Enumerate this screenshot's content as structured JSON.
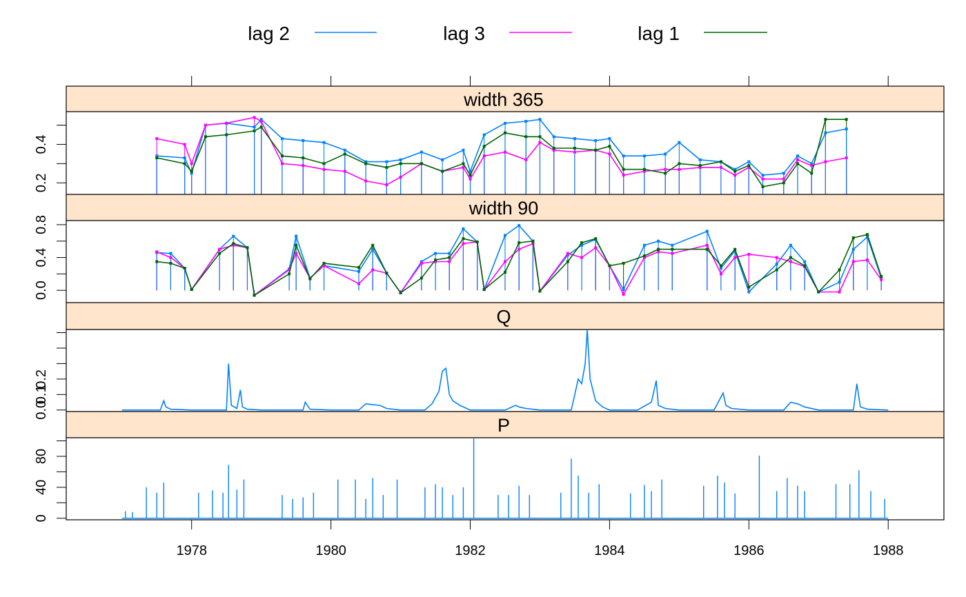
{
  "chart_data": {
    "type": "line",
    "layout": "stacked-panels",
    "legend": {
      "position": "top",
      "items": [
        {
          "label": "lag 2",
          "color": "#0080ff"
        },
        {
          "label": "lag 3",
          "color": "#ff00ff"
        },
        {
          "label": "lag 1",
          "color": "#006400"
        }
      ]
    },
    "x_axis": {
      "range": [
        1976.2,
        1988.8
      ],
      "ticks": [
        1978,
        1980,
        1982,
        1984,
        1986,
        1988
      ],
      "tick_labels": [
        "1978",
        "1980",
        "1982",
        "1984",
        "1986",
        "1988"
      ]
    },
    "panels": [
      {
        "title": "width 365",
        "ylim": [
          0.14,
          0.57
        ],
        "y_ticks": [
          0.2,
          0.4
        ],
        "y_tick_labels": [
          "0.2",
          "0.4"
        ],
        "y_minor_ticks": [
          0.2,
          0.3,
          0.4,
          0.5
        ],
        "style": "vertical-lines-with-points",
        "baseline": 0.14,
        "x": [
          1977.5,
          1977.9,
          1978.0,
          1978.2,
          1978.5,
          1978.9,
          1979.0,
          1979.3,
          1979.6,
          1979.9,
          1980.2,
          1980.5,
          1980.8,
          1981.0,
          1981.3,
          1981.6,
          1981.9,
          1982.0,
          1982.2,
          1982.5,
          1982.8,
          1983.0,
          1983.2,
          1983.5,
          1983.8,
          1984.0,
          1984.2,
          1984.5,
          1984.8,
          1985.0,
          1985.3,
          1985.6,
          1985.8,
          1986.0,
          1986.2,
          1986.5,
          1986.7,
          1986.9,
          1987.1,
          1987.4
        ],
        "series": [
          {
            "name": "lag 2",
            "values": [
              0.34,
              0.33,
              0.25,
              0.5,
              0.51,
              0.49,
              0.53,
              0.43,
              0.42,
              0.41,
              0.37,
              0.31,
              0.31,
              0.32,
              0.36,
              0.32,
              0.37,
              0.26,
              0.45,
              0.51,
              0.52,
              0.53,
              0.44,
              0.43,
              0.42,
              0.43,
              0.34,
              0.34,
              0.35,
              0.41,
              0.32,
              0.31,
              0.27,
              0.31,
              0.24,
              0.25,
              0.34,
              0.3,
              0.46,
              0.48
            ]
          },
          {
            "name": "lag 3",
            "values": [
              0.43,
              0.4,
              0.3,
              0.5,
              0.51,
              0.54,
              0.52,
              0.3,
              0.29,
              0.27,
              0.26,
              0.21,
              0.19,
              0.23,
              0.3,
              0.26,
              0.28,
              0.22,
              0.34,
              0.36,
              0.32,
              0.41,
              0.37,
              0.36,
              0.37,
              0.35,
              0.24,
              0.26,
              0.27,
              0.27,
              0.28,
              0.28,
              0.24,
              0.28,
              0.22,
              0.22,
              0.32,
              0.29,
              0.31,
              0.33
            ]
          },
          {
            "name": "lag 1",
            "values": [
              0.33,
              0.3,
              0.26,
              0.44,
              0.45,
              0.47,
              0.49,
              0.34,
              0.33,
              0.3,
              0.35,
              0.3,
              0.28,
              0.3,
              0.3,
              0.26,
              0.3,
              0.24,
              0.39,
              0.46,
              0.44,
              0.44,
              0.38,
              0.38,
              0.37,
              0.39,
              0.27,
              0.27,
              0.25,
              0.3,
              0.29,
              0.31,
              0.26,
              0.29,
              0.18,
              0.2,
              0.3,
              0.25,
              0.53,
              0.53
            ]
          }
        ]
      },
      {
        "title": "width 90",
        "ylim": [
          -0.15,
          0.85
        ],
        "y_ticks": [
          0.0,
          0.4,
          0.8
        ],
        "y_tick_labels": [
          "0.0",
          "0.4",
          "0.8"
        ],
        "y_minor_ticks": [
          0.0,
          0.2,
          0.4,
          0.6,
          0.8
        ],
        "style": "vertical-lines-with-points",
        "baseline": 0.0,
        "x": [
          1977.5,
          1977.7,
          1977.9,
          1978.0,
          1978.4,
          1978.6,
          1978.8,
          1978.9,
          1979.4,
          1979.5,
          1979.7,
          1979.9,
          1980.4,
          1980.6,
          1980.8,
          1981.0,
          1981.3,
          1981.5,
          1981.7,
          1981.9,
          1982.1,
          1982.2,
          1982.5,
          1982.7,
          1982.9,
          1983.0,
          1983.4,
          1983.6,
          1983.8,
          1984.0,
          1984.2,
          1984.5,
          1984.7,
          1984.9,
          1985.4,
          1985.6,
          1985.8,
          1986.0,
          1986.4,
          1986.6,
          1986.8,
          1987.0,
          1987.3,
          1987.5,
          1987.7,
          1987.9
        ],
        "series": [
          {
            "name": "lag 2",
            "values": [
              0.46,
              0.45,
              0.27,
              0.01,
              0.5,
              0.66,
              0.52,
              -0.06,
              0.26,
              0.66,
              0.15,
              0.3,
              0.23,
              0.5,
              0.21,
              -0.03,
              0.35,
              0.45,
              0.45,
              0.75,
              0.59,
              0.01,
              0.67,
              0.79,
              0.6,
              -0.01,
              0.43,
              0.55,
              0.62,
              0.3,
              0.01,
              0.55,
              0.6,
              0.55,
              0.72,
              0.27,
              0.48,
              -0.02,
              0.32,
              0.55,
              0.35,
              -0.02,
              0.1,
              0.5,
              0.65,
              0.15
            ]
          },
          {
            "name": "lag 3",
            "values": [
              0.47,
              0.4,
              0.27,
              0.01,
              0.5,
              0.55,
              0.52,
              -0.06,
              0.25,
              0.45,
              0.15,
              0.3,
              0.08,
              0.25,
              0.21,
              -0.03,
              0.33,
              0.35,
              0.35,
              0.57,
              0.59,
              0.01,
              0.35,
              0.5,
              0.57,
              -0.01,
              0.45,
              0.4,
              0.52,
              0.3,
              -0.05,
              0.4,
              0.47,
              0.45,
              0.55,
              0.2,
              0.4,
              0.44,
              0.4,
              0.35,
              0.29,
              -0.02,
              -0.02,
              0.35,
              0.37,
              0.13
            ]
          },
          {
            "name": "lag 1",
            "values": [
              0.35,
              0.33,
              0.27,
              0.01,
              0.45,
              0.57,
              0.52,
              -0.06,
              0.2,
              0.55,
              0.14,
              0.33,
              0.28,
              0.55,
              0.21,
              -0.03,
              0.15,
              0.37,
              0.4,
              0.63,
              0.59,
              0.01,
              0.22,
              0.58,
              0.6,
              -0.01,
              0.35,
              0.58,
              0.63,
              0.3,
              0.33,
              0.42,
              0.5,
              0.5,
              0.5,
              0.3,
              0.5,
              0.04,
              0.25,
              0.4,
              0.3,
              -0.02,
              0.25,
              0.64,
              0.68,
              0.17
            ]
          }
        ]
      },
      {
        "title": "Q",
        "ylim": [
          -0.01,
          0.52
        ],
        "y_ticks": [
          0.0,
          0.1,
          0.2
        ],
        "y_tick_labels": [
          "0.0",
          "0.1",
          "0.2"
        ],
        "y_minor_ticks": [
          0.0,
          0.1,
          0.2,
          0.3,
          0.4,
          0.5
        ],
        "style": "line",
        "series": [
          {
            "name": "Q",
            "x": [
              1977.0,
              1977.55,
              1977.6,
              1977.63,
              1977.7,
              1978.0,
              1978.5,
              1978.53,
              1978.57,
              1978.65,
              1978.7,
              1978.73,
              1978.8,
              1979.0,
              1979.6,
              1979.63,
              1979.7,
              1980.0,
              1980.4,
              1980.5,
              1980.6,
              1980.7,
              1980.8,
              1981.0,
              1981.35,
              1981.45,
              1981.55,
              1981.6,
              1981.65,
              1981.7,
              1981.75,
              1981.85,
              1982.0,
              1982.5,
              1982.65,
              1982.7,
              1982.8,
              1983.0,
              1983.45,
              1983.5,
              1983.55,
              1983.6,
              1983.65,
              1983.68,
              1983.72,
              1983.8,
              1983.9,
              1984.0,
              1984.4,
              1984.6,
              1984.67,
              1984.7,
              1984.8,
              1985.0,
              1985.5,
              1985.63,
              1985.67,
              1985.75,
              1986.0,
              1986.5,
              1986.6,
              1986.7,
              1986.8,
              1987.0,
              1987.5,
              1987.55,
              1987.6,
              1987.7,
              1988.0
            ],
            "values": [
              0.0,
              0.0,
              0.06,
              0.02,
              0.005,
              0.0,
              0.0,
              0.3,
              0.03,
              0.01,
              0.13,
              0.02,
              0.005,
              0.0,
              0.0,
              0.05,
              0.005,
              0.0,
              0.0,
              0.04,
              0.035,
              0.03,
              0.01,
              0.0,
              0.0,
              0.04,
              0.12,
              0.25,
              0.27,
              0.1,
              0.06,
              0.03,
              0.0,
              0.0,
              0.03,
              0.02,
              0.01,
              0.0,
              0.0,
              0.1,
              0.2,
              0.17,
              0.3,
              0.52,
              0.2,
              0.06,
              0.02,
              0.0,
              0.0,
              0.05,
              0.19,
              0.03,
              0.01,
              0.0,
              0.0,
              0.11,
              0.03,
              0.01,
              0.0,
              0.0,
              0.05,
              0.04,
              0.02,
              0.0,
              0.0,
              0.17,
              0.02,
              0.005,
              0.0
            ]
          }
        ]
      },
      {
        "title": "P",
        "ylim": [
          -2,
          104
        ],
        "y_ticks": [
          0,
          40,
          80
        ],
        "y_tick_labels": [
          "0",
          "40",
          "80"
        ],
        "y_minor_ticks": [
          0,
          20,
          40,
          60,
          80,
          100
        ],
        "style": "spikes",
        "series": [
          {
            "name": "P",
            "x": [
              1977.05,
              1977.15,
              1977.35,
              1977.5,
              1977.6,
              1978.1,
              1978.3,
              1978.45,
              1978.53,
              1978.65,
              1978.75,
              1979.3,
              1979.45,
              1979.6,
              1979.75,
              1980.1,
              1980.35,
              1980.5,
              1980.6,
              1980.75,
              1980.95,
              1981.35,
              1981.5,
              1981.6,
              1981.75,
              1981.9,
              1982.05,
              1982.4,
              1982.55,
              1982.7,
              1982.85,
              1983.3,
              1983.45,
              1983.55,
              1983.7,
              1983.85,
              1984.3,
              1984.5,
              1984.6,
              1984.75,
              1985.35,
              1985.55,
              1985.65,
              1985.8,
              1986.15,
              1986.4,
              1986.55,
              1986.7,
              1986.8,
              1987.25,
              1987.45,
              1987.58,
              1987.75,
              1987.95
            ],
            "values": [
              9,
              8,
              40,
              33,
              46,
              33,
              36,
              33,
              69,
              37,
              50,
              30,
              25,
              27,
              33,
              50,
              50,
              25,
              52,
              30,
              50,
              40,
              44,
              40,
              30,
              40,
              103,
              30,
              30,
              42,
              30,
              33,
              77,
              55,
              33,
              44,
              32,
              43,
              35,
              50,
              42,
              55,
              46,
              32,
              81,
              35,
              52,
              42,
              35,
              44,
              44,
              62,
              35,
              25
            ]
          }
        ]
      }
    ]
  }
}
